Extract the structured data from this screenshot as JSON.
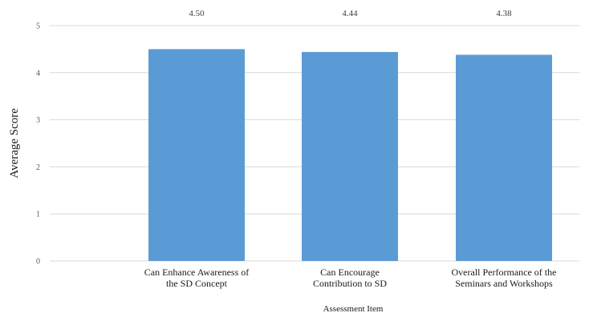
{
  "chart_data": {
    "type": "bar",
    "categories": [
      [
        "Can Enhance Awareness of",
        "the SD Concept"
      ],
      [
        "Can Encourage",
        "Contribution to SD"
      ],
      [
        "Overall Performance of the",
        "Seminars and Workshops"
      ]
    ],
    "values": [
      4.5,
      4.44,
      4.38
    ],
    "value_labels": [
      "4.50",
      "4.44",
      "4.38"
    ],
    "ylabel": "Average Score",
    "xlabel": "Assessment Item",
    "ylim": [
      0,
      5
    ],
    "yticks": [
      "0",
      "1",
      "2",
      "3",
      "4",
      "5"
    ],
    "grid": true,
    "legend": "none",
    "bar_color": "#5b9bd5"
  }
}
